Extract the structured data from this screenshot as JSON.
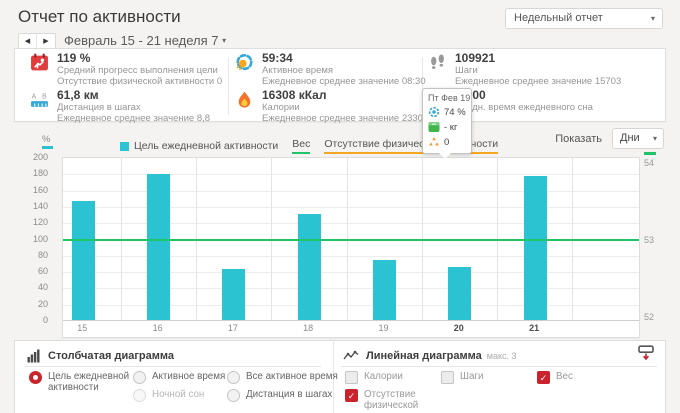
{
  "header": {
    "title": "Отчет по активности",
    "report_type": "Недельный отчет",
    "date_range": "Февраль 15 - 21 неделя 7"
  },
  "controls": {
    "show_label": "Показать",
    "interval": "Дни"
  },
  "stats": {
    "items": [
      {
        "icon": "goal-progress-icon",
        "value": "119 %",
        "label": "Средний прогресс выполнения цели",
        "sub": "Отсутствие физической активности 0"
      },
      {
        "icon": "active-time-icon",
        "value": "59:34",
        "label": "Активное время",
        "sub": "Ежедневное среднее значение 08:30"
      },
      {
        "icon": "steps-icon",
        "value": "109921",
        "label": "Шаги",
        "sub": "Ежедневное среднее значение 15703"
      },
      {
        "icon": "distance-icon",
        "value": "61,8 км",
        "label": "Дистанция в шагах",
        "sub": "Ежедневное среднее значение 8,8"
      },
      {
        "icon": "calories-icon",
        "value": "16308 кКал",
        "label": "Калории",
        "sub": "Ежедневное среднее значение 2330"
      },
      {
        "icon": "sleep-icon",
        "value": "08:00",
        "label": "Средн. время ежедневного сна",
        "sub": ""
      }
    ]
  },
  "tooltip": {
    "date": "Пт Фев 19",
    "goal_value": "74 %",
    "weight_value": "- кг",
    "inactivity_value": "0"
  },
  "legend": {
    "bar_series": "Цель ежедневной активности",
    "weight_series": "Вес",
    "inactivity_series": "Отсутствие физической активности",
    "left_unit": "%",
    "right_unit": "кг"
  },
  "chart_data": {
    "type": "bar",
    "categories": [
      "15",
      "16",
      "17",
      "18",
      "19",
      "20",
      "21"
    ],
    "weekend": [
      false,
      false,
      false,
      false,
      false,
      true,
      true
    ],
    "series": [
      {
        "name": "Цель ежедневной активности",
        "type": "bar",
        "axis": "left",
        "unit": "%",
        "color": "#2bc3d2",
        "values": [
          146,
          179,
          63,
          130,
          74,
          65,
          177
        ]
      },
      {
        "name": "Вес",
        "type": "line",
        "axis": "right",
        "unit": "кг",
        "color": "#21c468",
        "values": [
          53,
          53,
          53,
          53,
          53,
          53,
          53
        ]
      }
    ],
    "left_axis": {
      "min": 0,
      "max": 200,
      "step": 20,
      "unit": "%"
    },
    "right_axis": {
      "min": 52,
      "max": 54,
      "ticks": [
        54,
        53,
        52
      ],
      "unit": "кг"
    },
    "grid": true,
    "legend_position": "top-left",
    "title": ""
  },
  "bar_section": {
    "title": "Столбчатая диаграмма",
    "options": [
      {
        "label": "Цель ежедневной активности",
        "selected": true,
        "disabled": false
      },
      {
        "label": "Активное время",
        "selected": false,
        "disabled": false
      },
      {
        "label": "Ночной сон",
        "selected": false,
        "disabled": true
      },
      {
        "label": "Все активное время",
        "selected": false,
        "disabled": false
      },
      {
        "label": "Дистанция в шагах",
        "selected": false,
        "disabled": false
      }
    ]
  },
  "line_section": {
    "title": "Линейная диаграмма",
    "max_note": "макс. 3",
    "options": [
      {
        "label": "Калории",
        "checked": false
      },
      {
        "label": "Шаги",
        "checked": false
      },
      {
        "label": "Вес",
        "checked": true
      },
      {
        "label": "Отсутствие физической активности",
        "checked": true
      }
    ]
  },
  "colors": {
    "accent_red": "#c9242e",
    "bar_cyan": "#2bc3d2",
    "weight_green": "#21c468",
    "inactivity_orange": "#f5a623",
    "page_bg": "#f4f3f1"
  }
}
